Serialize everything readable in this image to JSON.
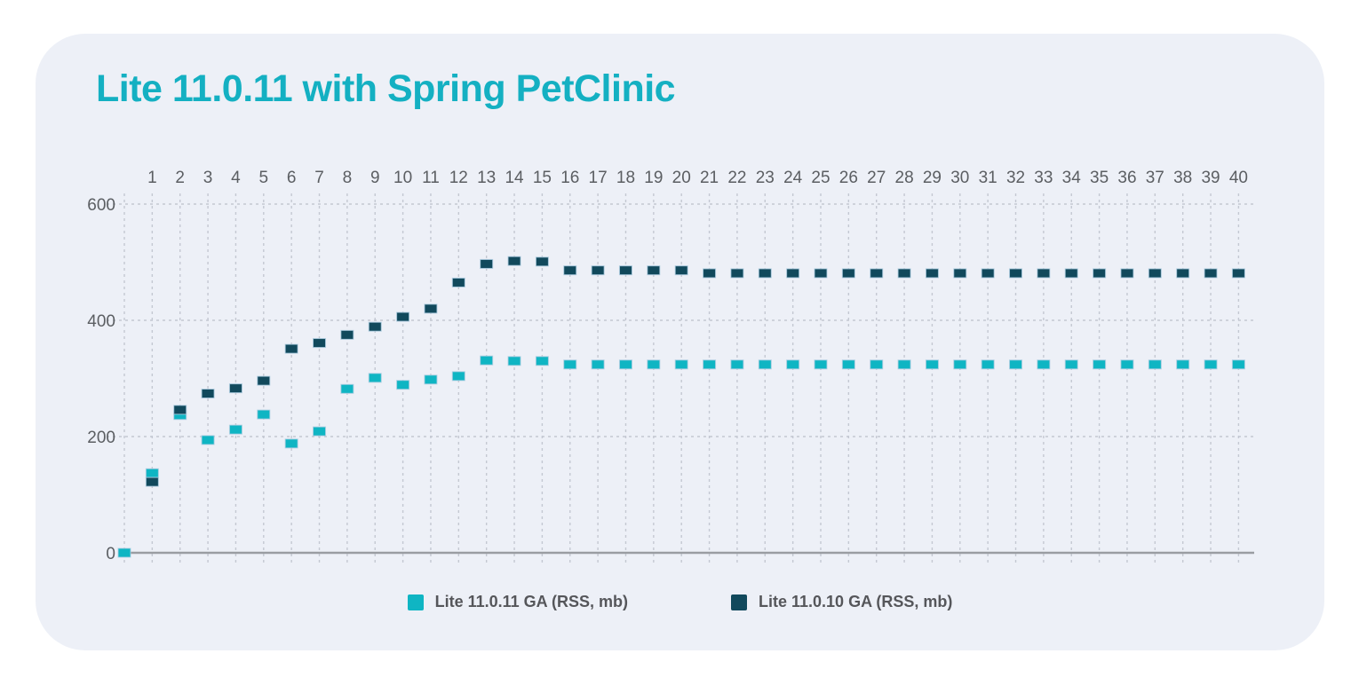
{
  "title": "Lite 11.0.11 with Spring PetClinic",
  "colors": {
    "title": "#14b0c2",
    "card_bg": "#edf0f7",
    "axis_text": "#5b5e62",
    "gridline": "#c4c8d2",
    "axis_line": "#9a9da2",
    "series_lite_11_0_11": "#0fb5c3",
    "series_lite_11_0_10": "#11495c"
  },
  "legend": {
    "items": [
      {
        "label": "Lite 11.0.11 GA (RSS, mb)",
        "color": "#0fb5c3"
      },
      {
        "label": "Lite 11.0.10 GA (RSS, mb)",
        "color": "#11495c"
      }
    ]
  },
  "chart_data": {
    "type": "scatter",
    "title": "Lite 11.0.11 with Spring PetClinic",
    "xlabel": "",
    "ylabel": "",
    "x_axis_position": "top",
    "grid": true,
    "legend_position": "bottom",
    "xlim": [
      0,
      40.5
    ],
    "ylim": [
      0,
      640
    ],
    "x_ticks": [
      1,
      2,
      3,
      4,
      5,
      6,
      7,
      8,
      9,
      10,
      11,
      12,
      13,
      14,
      15,
      16,
      17,
      18,
      19,
      20,
      21,
      22,
      23,
      24,
      25,
      26,
      27,
      28,
      29,
      30,
      31,
      32,
      33,
      34,
      35,
      36,
      37,
      38,
      39,
      40
    ],
    "y_ticks": [
      0,
      200,
      400,
      600
    ],
    "series": [
      {
        "name": "Lite 11.0.11 GA (RSS, mb)",
        "color": "#0fb5c3",
        "points": [
          [
            0,
            0
          ],
          [
            1,
            137
          ],
          [
            2,
            237
          ],
          [
            3,
            194
          ],
          [
            4,
            212
          ],
          [
            5,
            238
          ],
          [
            6,
            188
          ],
          [
            7,
            209
          ],
          [
            8,
            282
          ],
          [
            9,
            301
          ],
          [
            10,
            289
          ],
          [
            11,
            298
          ],
          [
            12,
            304
          ],
          [
            13,
            331
          ],
          [
            14,
            330
          ],
          [
            15,
            330
          ],
          [
            16,
            324
          ],
          [
            17,
            324
          ],
          [
            18,
            324
          ],
          [
            19,
            324
          ],
          [
            20,
            324
          ],
          [
            21,
            324
          ],
          [
            22,
            324
          ],
          [
            23,
            324
          ],
          [
            24,
            324
          ],
          [
            25,
            324
          ],
          [
            26,
            324
          ],
          [
            27,
            324
          ],
          [
            28,
            324
          ],
          [
            29,
            324
          ],
          [
            30,
            324
          ],
          [
            31,
            324
          ],
          [
            32,
            324
          ],
          [
            33,
            324
          ],
          [
            34,
            324
          ],
          [
            35,
            324
          ],
          [
            36,
            324
          ],
          [
            37,
            324
          ],
          [
            38,
            324
          ],
          [
            39,
            324
          ],
          [
            40,
            324
          ]
        ]
      },
      {
        "name": "Lite 11.0.10 GA (RSS, mb)",
        "color": "#11495c",
        "points": [
          [
            1,
            122
          ],
          [
            2,
            246
          ],
          [
            3,
            274
          ],
          [
            4,
            283
          ],
          [
            5,
            296
          ],
          [
            6,
            351
          ],
          [
            7,
            361
          ],
          [
            8,
            375
          ],
          [
            9,
            389
          ],
          [
            10,
            406
          ],
          [
            11,
            420
          ],
          [
            12,
            465
          ],
          [
            13,
            497
          ],
          [
            14,
            502
          ],
          [
            15,
            501
          ],
          [
            16,
            486
          ],
          [
            17,
            486
          ],
          [
            18,
            486
          ],
          [
            19,
            486
          ],
          [
            20,
            486
          ],
          [
            21,
            481
          ],
          [
            22,
            481
          ],
          [
            23,
            481
          ],
          [
            24,
            481
          ],
          [
            25,
            481
          ],
          [
            26,
            481
          ],
          [
            27,
            481
          ],
          [
            28,
            481
          ],
          [
            29,
            481
          ],
          [
            30,
            481
          ],
          [
            31,
            481
          ],
          [
            32,
            481
          ],
          [
            33,
            481
          ],
          [
            34,
            481
          ],
          [
            35,
            481
          ],
          [
            36,
            481
          ],
          [
            37,
            481
          ],
          [
            38,
            481
          ],
          [
            39,
            481
          ],
          [
            40,
            481
          ]
        ]
      }
    ]
  }
}
